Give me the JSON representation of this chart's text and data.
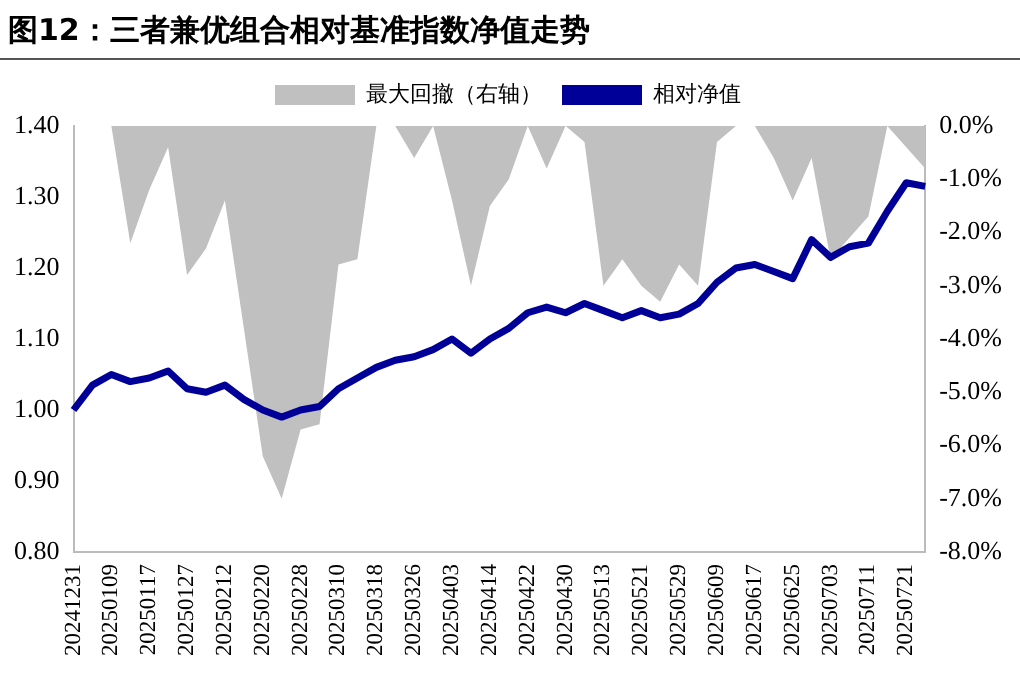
{
  "chart_data": {
    "type": "line",
    "title": "图12：三者兼优组合相对基准指数净值走势",
    "categories": [
      "20241231",
      null,
      "20250109",
      null,
      "20250117",
      null,
      "20250127",
      null,
      "20250212",
      null,
      "20250220",
      null,
      "20250228",
      null,
      "20250310",
      null,
      "20250318",
      null,
      "20250326",
      null,
      "20250403",
      null,
      "20250414",
      null,
      "20250422",
      null,
      "20250430",
      null,
      "20250513",
      null,
      "20250521",
      null,
      "20250529",
      null,
      "20250609",
      null,
      "20250617",
      null,
      "20250625",
      null,
      "20250703",
      null,
      "20250711",
      null,
      "20250721",
      null
    ],
    "series": [
      {
        "name": "最大回撤（右轴）",
        "type": "area",
        "axis": "y2",
        "color": "#c0c0c0",
        "values": [
          0,
          0,
          0,
          -2.2,
          -1.2,
          -0.4,
          -2.8,
          -2.3,
          -1.4,
          -3.8,
          -6.2,
          -7.0,
          -5.7,
          -5.6,
          -2.6,
          -2.5,
          0,
          0,
          -0.6,
          0,
          -1.4,
          -3.0,
          -1.5,
          -1.0,
          0,
          -0.8,
          0,
          -0.3,
          -3.0,
          -2.5,
          -3.0,
          -3.3,
          -2.6,
          -3.0,
          -0.3,
          0,
          0,
          -0.6,
          -1.4,
          -0.6,
          -2.5,
          -2.1,
          -1.7,
          0,
          -0.4,
          -0.8
        ]
      },
      {
        "name": "相对净值",
        "type": "line",
        "color": "#000099",
        "values": [
          1.0,
          1.035,
          1.05,
          1.04,
          1.045,
          1.055,
          1.03,
          1.025,
          1.035,
          1.015,
          1.0,
          0.99,
          1.0,
          1.005,
          1.03,
          1.045,
          1.06,
          1.07,
          1.075,
          1.085,
          1.1,
          1.08,
          1.1,
          1.115,
          1.137,
          1.145,
          1.137,
          1.15,
          1.14,
          1.13,
          1.14,
          1.13,
          1.135,
          1.15,
          1.18,
          1.2,
          1.205,
          1.195,
          1.185,
          1.24,
          1.215,
          1.23,
          1.235,
          1.28,
          1.32,
          1.315
        ]
      }
    ],
    "ylim": [
      0.8,
      1.4
    ],
    "yticks": [
      {
        "value": 0.8,
        "label": "0.80"
      },
      {
        "value": 0.9,
        "label": "0.90"
      },
      {
        "value": 1.0,
        "label": "1.00"
      },
      {
        "value": 1.1,
        "label": "1.10"
      },
      {
        "value": 1.2,
        "label": "1.20"
      },
      {
        "value": 1.3,
        "label": "1.30"
      },
      {
        "value": 1.4,
        "label": "1.40"
      }
    ],
    "y2lim": [
      -8,
      0
    ],
    "y2ticks": [
      {
        "value": -8,
        "label": "-8.0%"
      },
      {
        "value": -7,
        "label": "-7.0%"
      },
      {
        "value": -6,
        "label": "-6.0%"
      },
      {
        "value": -5,
        "label": "-5.0%"
      },
      {
        "value": -4,
        "label": "-4.0%"
      },
      {
        "value": -3,
        "label": "-3.0%"
      },
      {
        "value": -2,
        "label": "-2.0%"
      },
      {
        "value": -1,
        "label": "-1.0%"
      },
      {
        "value": 0,
        "label": "0.0%"
      }
    ],
    "legend": "top",
    "grid": false,
    "marker": "none"
  }
}
